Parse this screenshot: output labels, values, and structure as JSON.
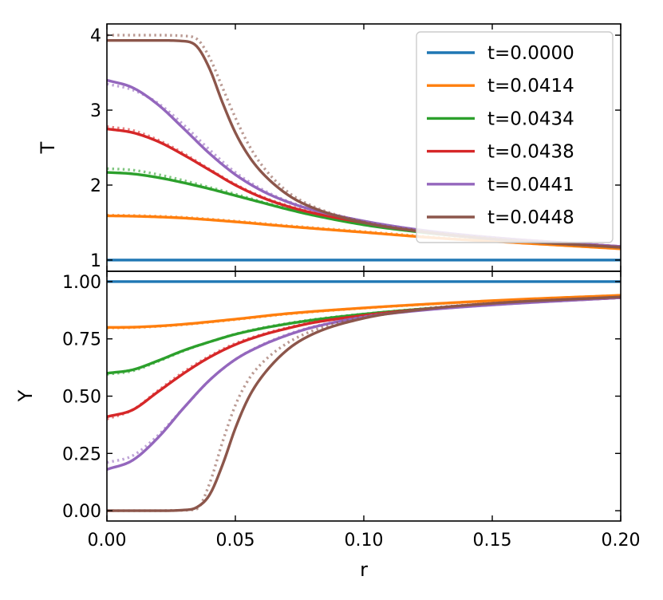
{
  "chart_data": [
    {
      "type": "line",
      "panel": "top",
      "xlabel": "",
      "ylabel": "T",
      "xlim": [
        0.0,
        0.2
      ],
      "ylim": [
        0.85,
        4.15
      ],
      "yticks": [
        1,
        2,
        3,
        4
      ],
      "ytick_labels": [
        "1",
        "2",
        "3",
        "4"
      ],
      "grid": false,
      "legend": "top-right",
      "series": [
        {
          "name": "t=0.0000",
          "color": "#1f77b4",
          "solid": {
            "x": [
              0.0,
              0.2
            ],
            "y": [
              1.0,
              1.0
            ]
          }
        },
        {
          "name": "t=0.0414",
          "color": "#ff7f0e",
          "solid": {
            "x": [
              0.0,
              0.01,
              0.02,
              0.03,
              0.05,
              0.07,
              0.1,
              0.13,
              0.16,
              0.2
            ],
            "y": [
              1.59,
              1.585,
              1.575,
              1.56,
              1.51,
              1.45,
              1.37,
              1.29,
              1.23,
              1.15
            ]
          },
          "dotted": {
            "x": [
              0.0,
              0.01,
              0.02,
              0.03,
              0.05,
              0.07,
              0.1,
              0.13,
              0.16,
              0.2
            ],
            "y": [
              1.6,
              1.595,
              1.585,
              1.57,
              1.52,
              1.46,
              1.38,
              1.3,
              1.24,
              1.16
            ]
          }
        },
        {
          "name": "t=0.0434",
          "color": "#2ca02c",
          "solid": {
            "x": [
              0.0,
              0.01,
              0.02,
              0.03,
              0.04,
              0.05,
              0.06,
              0.07,
              0.08,
              0.1,
              0.12,
              0.15,
              0.2
            ],
            "y": [
              2.17,
              2.15,
              2.1,
              2.03,
              1.95,
              1.86,
              1.77,
              1.68,
              1.6,
              1.47,
              1.38,
              1.28,
              1.17
            ]
          },
          "dotted": {
            "x": [
              0.0,
              0.01,
              0.02,
              0.03,
              0.04,
              0.05,
              0.06,
              0.07,
              0.08,
              0.1,
              0.12,
              0.15,
              0.2
            ],
            "y": [
              2.22,
              2.2,
              2.14,
              2.06,
              1.97,
              1.88,
              1.78,
              1.69,
              1.61,
              1.48,
              1.39,
              1.28,
              1.17
            ]
          }
        },
        {
          "name": "t=0.0438",
          "color": "#d62728",
          "solid": {
            "x": [
              0.0,
              0.01,
              0.02,
              0.03,
              0.04,
              0.05,
              0.06,
              0.07,
              0.08,
              0.1,
              0.12,
              0.15,
              0.2
            ],
            "y": [
              2.75,
              2.7,
              2.58,
              2.4,
              2.2,
              2.0,
              1.84,
              1.72,
              1.63,
              1.5,
              1.4,
              1.3,
              1.18
            ]
          },
          "dotted": {
            "x": [
              0.0,
              0.01,
              0.02,
              0.03,
              0.04,
              0.05,
              0.06,
              0.07,
              0.08,
              0.1,
              0.12,
              0.15,
              0.2
            ],
            "y": [
              2.78,
              2.73,
              2.6,
              2.42,
              2.21,
              2.01,
              1.85,
              1.73,
              1.64,
              1.5,
              1.4,
              1.3,
              1.18
            ]
          }
        },
        {
          "name": "t=0.0441",
          "color": "#9467bd",
          "solid": {
            "x": [
              0.0,
              0.01,
              0.02,
              0.03,
              0.04,
              0.05,
              0.06,
              0.07,
              0.08,
              0.1,
              0.12,
              0.15,
              0.2
            ],
            "y": [
              3.4,
              3.3,
              3.07,
              2.75,
              2.42,
              2.14,
              1.93,
              1.78,
              1.67,
              1.52,
              1.41,
              1.3,
              1.18
            ]
          },
          "dotted": {
            "x": [
              0.0,
              0.01,
              0.02,
              0.03,
              0.04,
              0.05,
              0.06,
              0.07,
              0.08,
              0.1,
              0.12,
              0.15,
              0.2
            ],
            "y": [
              3.35,
              3.27,
              3.09,
              2.8,
              2.47,
              2.17,
              1.95,
              1.79,
              1.68,
              1.52,
              1.41,
              1.3,
              1.18
            ]
          }
        },
        {
          "name": "t=0.0448",
          "color": "#8c564b",
          "solid": {
            "x": [
              0.0,
              0.02,
              0.03,
              0.035,
              0.04,
              0.045,
              0.05,
              0.055,
              0.06,
              0.07,
              0.08,
              0.1,
              0.12,
              0.15,
              0.2
            ],
            "y": [
              3.93,
              3.93,
              3.92,
              3.85,
              3.55,
              3.1,
              2.7,
              2.4,
              2.18,
              1.88,
              1.7,
              1.5,
              1.39,
              1.28,
              1.17
            ]
          },
          "dotted": {
            "x": [
              0.0,
              0.02,
              0.03,
              0.035,
              0.04,
              0.045,
              0.05,
              0.055,
              0.06,
              0.07,
              0.08,
              0.1,
              0.12,
              0.15,
              0.2
            ],
            "y": [
              4.0,
              4.0,
              3.99,
              3.95,
              3.7,
              3.3,
              2.9,
              2.55,
              2.28,
              1.92,
              1.72,
              1.51,
              1.4,
              1.29,
              1.17
            ]
          }
        }
      ]
    },
    {
      "type": "line",
      "panel": "bottom",
      "xlabel": "r",
      "ylabel": "Y",
      "xlim": [
        0.0,
        0.2
      ],
      "ylim": [
        -0.045,
        1.045
      ],
      "xticks": [
        0.0,
        0.05,
        0.1,
        0.15,
        0.2
      ],
      "xtick_labels": [
        "0.00",
        "0.05",
        "0.10",
        "0.15",
        "0.20"
      ],
      "yticks": [
        0.0,
        0.25,
        0.5,
        0.75,
        1.0
      ],
      "ytick_labels": [
        "0.00",
        "0.25",
        "0.50",
        "0.75",
        "1.00"
      ],
      "grid": false,
      "series": [
        {
          "name": "t=0.0000",
          "color": "#1f77b4",
          "solid": {
            "x": [
              0.0,
              0.2
            ],
            "y": [
              1.0,
              1.0
            ]
          }
        },
        {
          "name": "t=0.0414",
          "color": "#ff7f0e",
          "solid": {
            "x": [
              0.0,
              0.01,
              0.02,
              0.03,
              0.05,
              0.07,
              0.1,
              0.13,
              0.16,
              0.2
            ],
            "y": [
              0.8,
              0.801,
              0.806,
              0.814,
              0.836,
              0.86,
              0.885,
              0.905,
              0.922,
              0.94
            ]
          },
          "dotted": {
            "x": [
              0.0,
              0.01,
              0.02,
              0.03,
              0.05,
              0.07,
              0.1,
              0.13,
              0.16,
              0.2
            ],
            "y": [
              0.797,
              0.799,
              0.804,
              0.812,
              0.834,
              0.858,
              0.884,
              0.904,
              0.921,
              0.94
            ]
          }
        },
        {
          "name": "t=0.0434",
          "color": "#2ca02c",
          "solid": {
            "x": [
              0.0,
              0.01,
              0.02,
              0.03,
              0.04,
              0.05,
              0.06,
              0.07,
              0.08,
              0.1,
              0.12,
              0.15,
              0.2
            ],
            "y": [
              0.6,
              0.615,
              0.655,
              0.7,
              0.737,
              0.77,
              0.795,
              0.815,
              0.832,
              0.858,
              0.878,
              0.902,
              0.93
            ]
          },
          "dotted": {
            "x": [
              0.0,
              0.01,
              0.02,
              0.03,
              0.04,
              0.05,
              0.06,
              0.07,
              0.08,
              0.1,
              0.12,
              0.15,
              0.2
            ],
            "y": [
              0.595,
              0.61,
              0.652,
              0.698,
              0.737,
              0.771,
              0.797,
              0.817,
              0.834,
              0.859,
              0.879,
              0.902,
              0.93
            ]
          }
        },
        {
          "name": "t=0.0438",
          "color": "#d62728",
          "solid": {
            "x": [
              0.0,
              0.01,
              0.02,
              0.03,
              0.04,
              0.05,
              0.06,
              0.07,
              0.08,
              0.1,
              0.12,
              0.15,
              0.2
            ],
            "y": [
              0.41,
              0.44,
              0.52,
              0.6,
              0.67,
              0.725,
              0.765,
              0.795,
              0.82,
              0.852,
              0.876,
              0.9,
              0.93
            ]
          },
          "dotted": {
            "x": [
              0.0,
              0.01,
              0.02,
              0.03,
              0.04,
              0.05,
              0.06,
              0.07,
              0.08,
              0.1,
              0.12,
              0.15,
              0.2
            ],
            "y": [
              0.4,
              0.44,
              0.525,
              0.607,
              0.675,
              0.73,
              0.768,
              0.798,
              0.822,
              0.853,
              0.877,
              0.9,
              0.93
            ]
          }
        },
        {
          "name": "t=0.0441",
          "color": "#9467bd",
          "solid": {
            "x": [
              0.0,
              0.01,
              0.02,
              0.03,
              0.04,
              0.05,
              0.06,
              0.07,
              0.08,
              0.1,
              0.12,
              0.15,
              0.2
            ],
            "y": [
              0.18,
              0.22,
              0.32,
              0.45,
              0.57,
              0.66,
              0.72,
              0.765,
              0.8,
              0.845,
              0.872,
              0.898,
              0.93
            ]
          },
          "dotted": {
            "x": [
              0.0,
              0.01,
              0.02,
              0.03,
              0.04,
              0.05,
              0.06,
              0.07,
              0.08,
              0.1,
              0.12,
              0.15,
              0.2
            ],
            "y": [
              0.21,
              0.24,
              0.33,
              0.45,
              0.57,
              0.66,
              0.722,
              0.768,
              0.802,
              0.846,
              0.873,
              0.899,
              0.93
            ]
          }
        },
        {
          "name": "t=0.0448",
          "color": "#8c564b",
          "solid": {
            "x": [
              0.0,
              0.02,
              0.03,
              0.035,
              0.04,
              0.045,
              0.05,
              0.055,
              0.06,
              0.07,
              0.08,
              0.1,
              0.12,
              0.15,
              0.2
            ],
            "y": [
              0.0,
              0.0,
              0.003,
              0.015,
              0.07,
              0.2,
              0.36,
              0.49,
              0.58,
              0.7,
              0.77,
              0.84,
              0.875,
              0.905,
              0.933
            ]
          },
          "dotted": {
            "x": [
              0.0,
              0.02,
              0.03,
              0.035,
              0.04,
              0.045,
              0.05,
              0.055,
              0.06,
              0.07,
              0.08,
              0.1,
              0.12,
              0.15,
              0.2
            ],
            "y": [
              0.0,
              0.0,
              0.002,
              0.008,
              0.12,
              0.3,
              0.46,
              0.57,
              0.64,
              0.73,
              0.785,
              0.845,
              0.878,
              0.906,
              0.933
            ]
          }
        }
      ]
    }
  ]
}
